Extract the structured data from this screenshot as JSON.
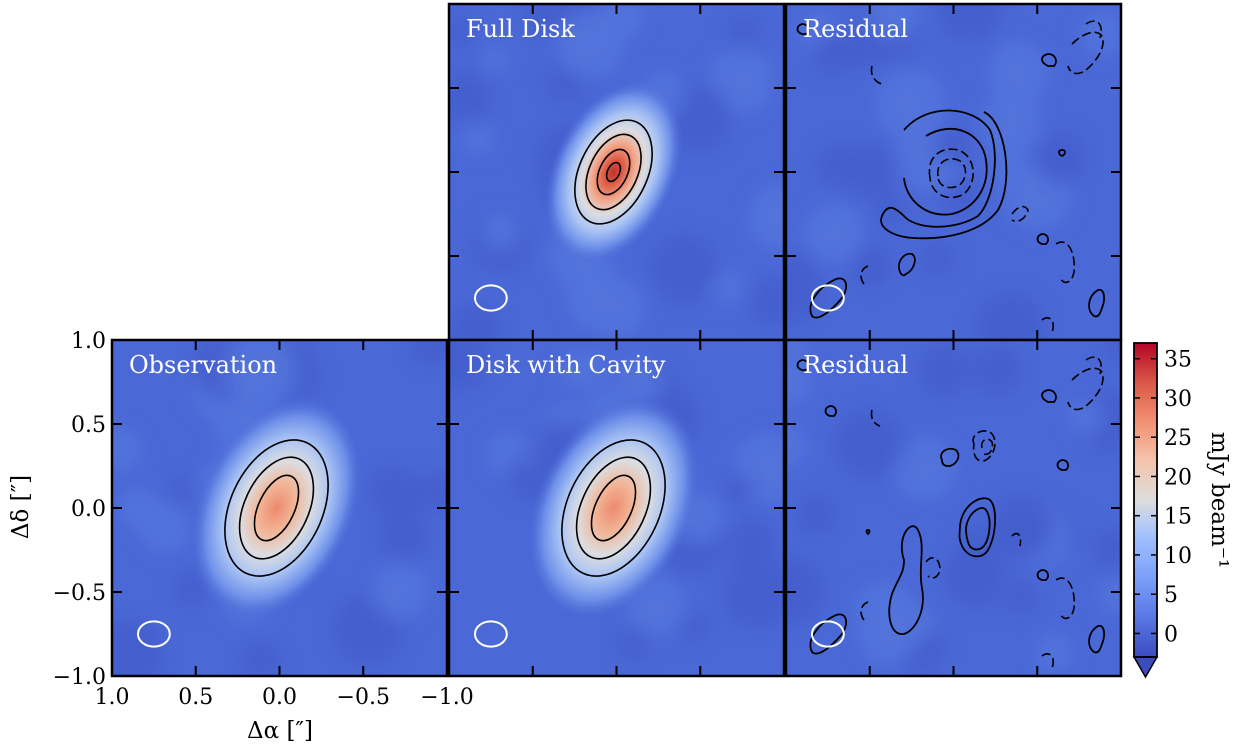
{
  "chart_data": {
    "type": "heatmap",
    "panels": [
      {
        "id": "observation",
        "title": "Observation",
        "kind": "disk"
      },
      {
        "id": "full-disk",
        "title": "Full Disk",
        "kind": "full"
      },
      {
        "id": "disk-cavity",
        "title": "Disk with Cavity",
        "kind": "disk"
      },
      {
        "id": "residual-full",
        "title": "Residual",
        "kind": "residual-full"
      },
      {
        "id": "residual-cavity",
        "title": "Residual",
        "kind": "residual-cavity"
      }
    ],
    "xlabel": "Δα [″]",
    "ylabel": "Δδ [″]",
    "xlim": [
      1.0,
      -1.0
    ],
    "ylim": [
      -1.0,
      1.0
    ],
    "x_ticks": [
      1.0,
      0.5,
      0.0,
      -0.5,
      -1.0
    ],
    "x_tick_labels": [
      "1.0",
      "0.5",
      "0.0",
      "−0.5",
      "−1.0"
    ],
    "y_ticks": [
      1.0,
      0.5,
      0.0,
      -0.5,
      -1.0
    ],
    "y_tick_labels": [
      "1.0",
      "0.5",
      "0.0",
      "−0.5",
      "−1.0"
    ],
    "colorbar": {
      "label": "mJy beam⁻¹",
      "range": [
        -3,
        37
      ],
      "ticks": [
        0,
        5,
        10,
        15,
        20,
        25,
        30,
        35
      ],
      "tick_labels": [
        "0",
        "5",
        "10",
        "15",
        "20",
        "25",
        "30",
        "35"
      ],
      "colormap": "coolwarm",
      "extend": "min"
    },
    "peak_values": {
      "observation": 24,
      "full-disk": 36,
      "disk-cavity": 24
    },
    "beam": {
      "x": 0.75,
      "y": -0.75,
      "major": 0.19,
      "minor": 0.15,
      "color": "#ffffff"
    },
    "background_color": "#4a68d6",
    "contour_color": "#000000"
  }
}
